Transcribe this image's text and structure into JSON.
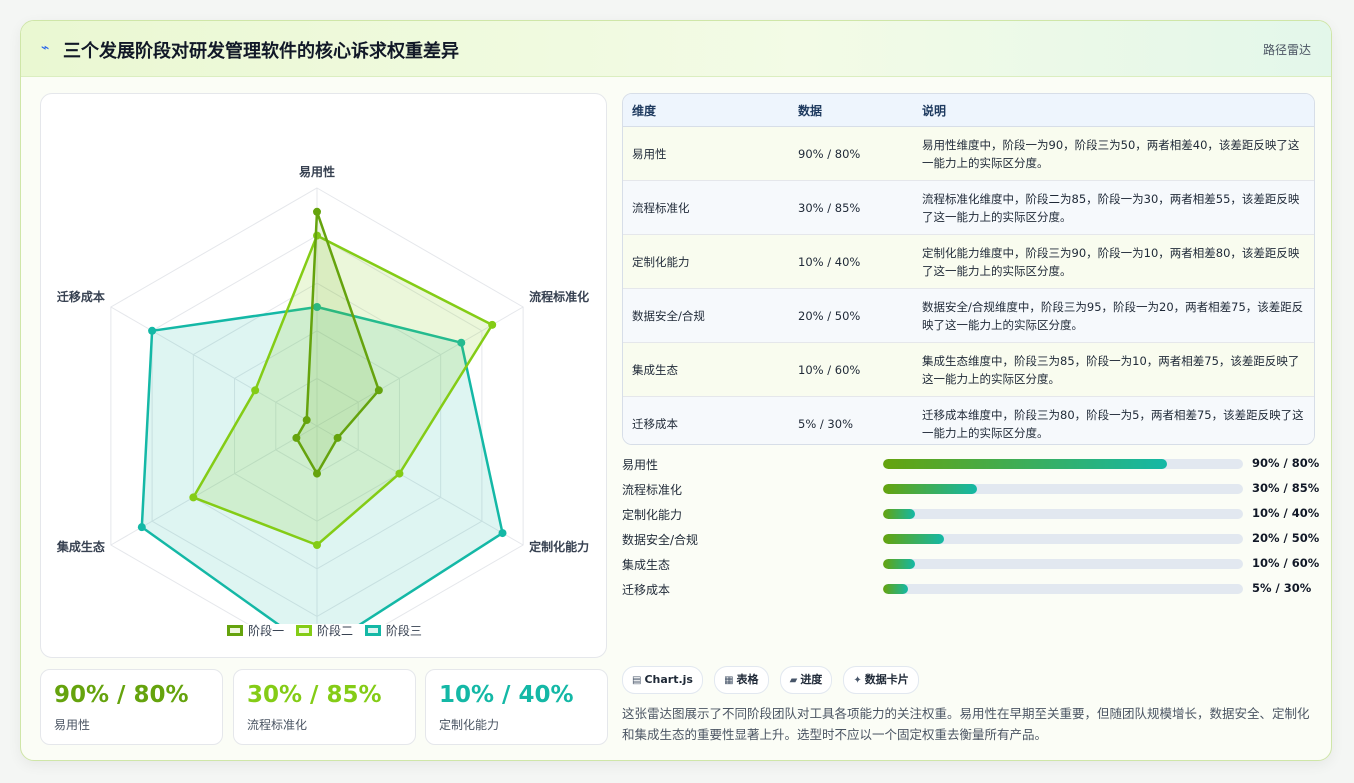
{
  "header": {
    "icon": "⌁",
    "title": "三个发展阶段对研发管理软件的核心诉求权重差异",
    "tag": "路径雷达"
  },
  "colors": {
    "stage1": "#65a30d",
    "stage2": "#84cc16",
    "stage3": "#14b8a6"
  },
  "chart_data": {
    "type": "radar",
    "axes": [
      "易用性",
      "流程标准化",
      "定制化能力",
      "数据安全/合规",
      "集成生态",
      "迁移成本"
    ],
    "range": [
      0,
      100
    ],
    "series": [
      {
        "name": "阶段一",
        "values": [
          90,
          30,
          10,
          20,
          10,
          5
        ]
      },
      {
        "name": "阶段二",
        "values": [
          80,
          85,
          40,
          50,
          60,
          30
        ]
      },
      {
        "name": "阶段三",
        "values": [
          50,
          70,
          90,
          95,
          85,
          80
        ]
      }
    ]
  },
  "kpis": [
    {
      "value": "90% / 80%",
      "label": "易用性",
      "color": "#65a30d"
    },
    {
      "value": "30% / 85%",
      "label": "流程标准化",
      "color": "#84cc16"
    },
    {
      "value": "10% / 40%",
      "label": "定制化能力",
      "color": "#14b8a6"
    }
  ],
  "table": {
    "headers": [
      "维度",
      "数据",
      "说明"
    ],
    "rows": [
      {
        "dim": "易用性",
        "data": "90% / 80%",
        "note": "易用性维度中，阶段一为90，阶段三为50，两者相差40，该差距反映了这一能力上的实际区分度。"
      },
      {
        "dim": "流程标准化",
        "data": "30% / 85%",
        "note": "流程标准化维度中，阶段二为85，阶段一为30，两者相差55，该差距反映了这一能力上的实际区分度。"
      },
      {
        "dim": "定制化能力",
        "data": "10% / 40%",
        "note": "定制化能力维度中，阶段三为90，阶段一为10，两者相差80，该差距反映了这一能力上的实际区分度。"
      },
      {
        "dim": "数据安全/合规",
        "data": "20% / 50%",
        "note": "数据安全/合规维度中，阶段三为95，阶段一为20，两者相差75，该差距反映了这一能力上的实际区分度。"
      },
      {
        "dim": "集成生态",
        "data": "10% / 60%",
        "note": "集成生态维度中，阶段三为85，阶段一为10，两者相差75，该差距反映了这一能力上的实际区分度。"
      },
      {
        "dim": "迁移成本",
        "data": "5% / 30%",
        "note": "迁移成本维度中，阶段三为80，阶段一为5，两者相差75，该差距反映了这一能力上的实际区分度。"
      }
    ]
  },
  "progress": [
    {
      "label": "易用性",
      "value": "90% / 80%",
      "fill": 0.79
    },
    {
      "label": "流程标准化",
      "value": "30% / 85%",
      "fill": 0.26
    },
    {
      "label": "定制化能力",
      "value": "10% / 40%",
      "fill": 0.09
    },
    {
      "label": "数据安全/合规",
      "value": "20% / 50%",
      "fill": 0.17
    },
    {
      "label": "集成生态",
      "value": "10% / 60%",
      "fill": 0.09
    },
    {
      "label": "迁移成本",
      "value": "5% / 30%",
      "fill": 0.07
    }
  ],
  "chips": [
    {
      "icon": "chart-icon",
      "glyph": "▤",
      "label": "Chart.js"
    },
    {
      "icon": "table-icon",
      "glyph": "▦",
      "label": "表格"
    },
    {
      "icon": "progress-icon",
      "glyph": "▰",
      "label": "进度"
    },
    {
      "icon": "sparkle-icon",
      "glyph": "✦",
      "label": "数据卡片"
    }
  ],
  "description": "这张雷达图展示了不同阶段团队对工具各项能力的关注权重。易用性在早期至关重要，但随团队规模增长，数据安全、定制化和集成生态的重要性显著上升。选型时不应以一个固定权重去衡量所有产品。"
}
